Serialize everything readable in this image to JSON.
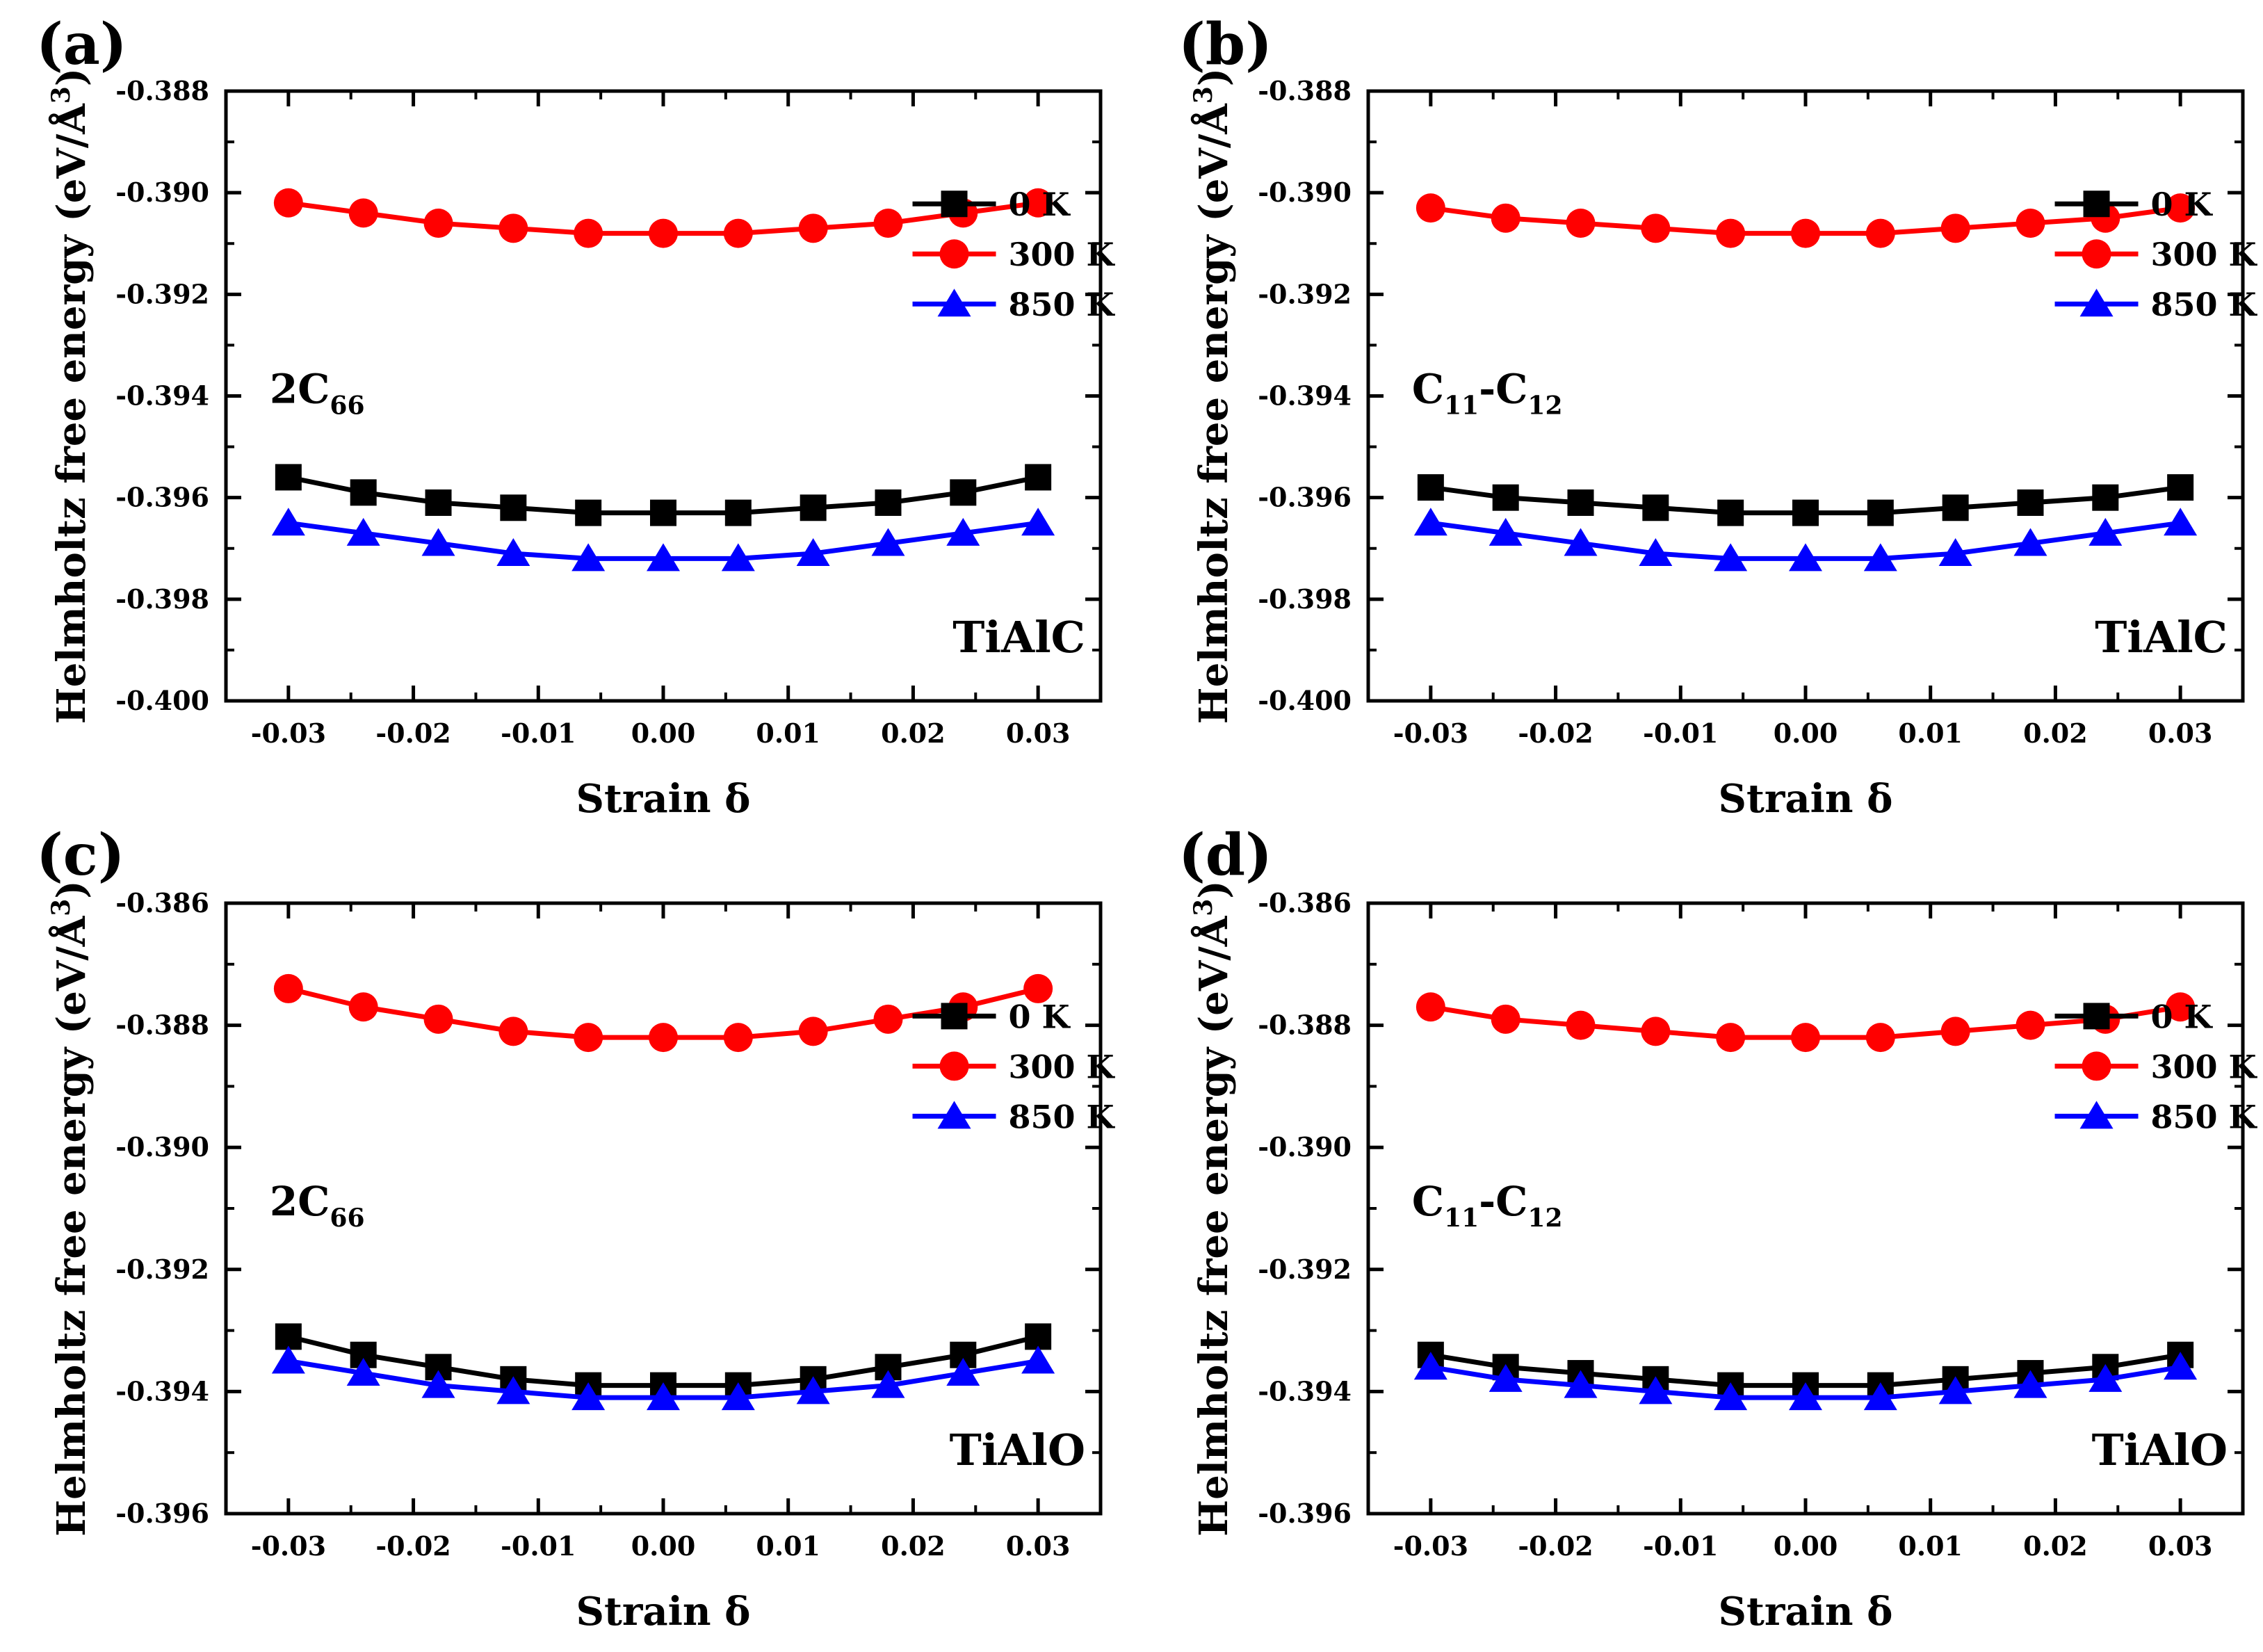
{
  "figure": {
    "axis_x_label": "Strain δ",
    "axis_y_label": "Helmholtz free energy (eV/Å³)",
    "axis_y_label_main": "Helmholtz free energy (eV/Å",
    "axis_y_label_sup": "3",
    "axis_y_label_end": ")"
  },
  "colors": {
    "0K": "#000000",
    "300K": "#ff0000",
    "850K": "#0000ff"
  },
  "chart_data": [
    {
      "panel": "(a)",
      "type": "line",
      "elastic_constant": "2C66",
      "elastic_constant_label": {
        "base": "2C",
        "sub": "66"
      },
      "material": "TiAlC",
      "xlabel": "Strain δ",
      "ylabel": "Helmholtz free energy (eV/Å³)",
      "xlim": [
        -0.035,
        0.035
      ],
      "ylim": [
        -0.4,
        -0.388
      ],
      "xticks": [
        -0.03,
        -0.02,
        -0.01,
        0.0,
        0.01,
        0.02,
        0.03
      ],
      "xtick_labels": [
        "-0.03",
        "-0.02",
        "-0.01",
        "0.00",
        "0.01",
        "0.02",
        "0.03"
      ],
      "yticks": [
        -0.4,
        -0.398,
        -0.396,
        -0.394,
        -0.392,
        -0.39,
        -0.388
      ],
      "ytick_labels": [
        "-0.400",
        "-0.398",
        "-0.396",
        "-0.394",
        "-0.392",
        "-0.390",
        "-0.388"
      ],
      "legend_position": "right",
      "x": [
        -0.03,
        -0.024,
        -0.018,
        -0.012,
        -0.006,
        0.0,
        0.006,
        0.012,
        0.018,
        0.024,
        0.03
      ],
      "series": [
        {
          "name": "0 K",
          "key": "0K",
          "marker": "square",
          "values": [
            -0.3956,
            -0.3959,
            -0.3961,
            -0.3962,
            -0.3963,
            -0.3963,
            -0.3963,
            -0.3962,
            -0.3961,
            -0.3959,
            -0.3956
          ]
        },
        {
          "name": "300 K",
          "key": "300K",
          "marker": "circle",
          "values": [
            -0.3902,
            -0.3904,
            -0.3906,
            -0.3907,
            -0.3908,
            -0.3908,
            -0.3908,
            -0.3907,
            -0.3906,
            -0.3904,
            -0.3902
          ]
        },
        {
          "name": "850 K",
          "key": "850K",
          "marker": "triangle",
          "values": [
            -0.3965,
            -0.3967,
            -0.3969,
            -0.3971,
            -0.3972,
            -0.3972,
            -0.3972,
            -0.3971,
            -0.3969,
            -0.3967,
            -0.3965
          ]
        }
      ]
    },
    {
      "panel": "(b)",
      "type": "line",
      "elastic_constant": "C11-C12",
      "elastic_constant_label": {
        "a": "C",
        "a_sub": "11",
        "dash": "-",
        "b": "C",
        "b_sub": "12"
      },
      "material": "TiAlC",
      "xlabel": "Strain δ",
      "ylabel": "Helmholtz free energy (eV/Å³)",
      "xlim": [
        -0.035,
        0.035
      ],
      "ylim": [
        -0.4,
        -0.388
      ],
      "xticks": [
        -0.03,
        -0.02,
        -0.01,
        0.0,
        0.01,
        0.02,
        0.03
      ],
      "xtick_labels": [
        "-0.03",
        "-0.02",
        "-0.01",
        "0.00",
        "0.01",
        "0.02",
        "0.03"
      ],
      "yticks": [
        -0.4,
        -0.398,
        -0.396,
        -0.394,
        -0.392,
        -0.39,
        -0.388
      ],
      "ytick_labels": [
        "-0.400",
        "-0.398",
        "-0.396",
        "-0.394",
        "-0.392",
        "-0.390",
        "-0.388"
      ],
      "legend_position": "right",
      "x": [
        -0.03,
        -0.024,
        -0.018,
        -0.012,
        -0.006,
        0.0,
        0.006,
        0.012,
        0.018,
        0.024,
        0.03
      ],
      "series": [
        {
          "name": "0 K",
          "key": "0K",
          "marker": "square",
          "values": [
            -0.3958,
            -0.396,
            -0.3961,
            -0.3962,
            -0.3963,
            -0.3963,
            -0.3963,
            -0.3962,
            -0.3961,
            -0.396,
            -0.3958
          ]
        },
        {
          "name": "300 K",
          "key": "300K",
          "marker": "circle",
          "values": [
            -0.3903,
            -0.3905,
            -0.3906,
            -0.3907,
            -0.3908,
            -0.3908,
            -0.3908,
            -0.3907,
            -0.3906,
            -0.3905,
            -0.3903
          ]
        },
        {
          "name": "850 K",
          "key": "850K",
          "marker": "triangle",
          "values": [
            -0.3965,
            -0.3967,
            -0.3969,
            -0.3971,
            -0.3972,
            -0.3972,
            -0.3972,
            -0.3971,
            -0.3969,
            -0.3967,
            -0.3965
          ]
        }
      ]
    },
    {
      "panel": "(c)",
      "type": "line",
      "elastic_constant": "2C66",
      "elastic_constant_label": {
        "base": "2C",
        "sub": "66"
      },
      "material": "TiAlO",
      "xlabel": "Strain δ",
      "ylabel": "Helmholtz free energy (eV/Å³)",
      "xlim": [
        -0.035,
        0.035
      ],
      "ylim": [
        -0.396,
        -0.386
      ],
      "xticks": [
        -0.03,
        -0.02,
        -0.01,
        0.0,
        0.01,
        0.02,
        0.03
      ],
      "xtick_labels": [
        "-0.03",
        "-0.02",
        "-0.01",
        "0.00",
        "0.01",
        "0.02",
        "0.03"
      ],
      "yticks": [
        -0.396,
        -0.394,
        -0.392,
        -0.39,
        -0.388,
        -0.386
      ],
      "ytick_labels": [
        "-0.396",
        "-0.394",
        "-0.392",
        "-0.390",
        "-0.388",
        "-0.386"
      ],
      "legend_position": "right",
      "x": [
        -0.03,
        -0.024,
        -0.018,
        -0.012,
        -0.006,
        0.0,
        0.006,
        0.012,
        0.018,
        0.024,
        0.03
      ],
      "series": [
        {
          "name": "0 K",
          "key": "0K",
          "marker": "square",
          "values": [
            -0.3931,
            -0.3934,
            -0.3936,
            -0.3938,
            -0.3939,
            -0.3939,
            -0.3939,
            -0.3938,
            -0.3936,
            -0.3934,
            -0.3931
          ]
        },
        {
          "name": "300 K",
          "key": "300K",
          "marker": "circle",
          "values": [
            -0.3874,
            -0.3877,
            -0.3879,
            -0.3881,
            -0.3882,
            -0.3882,
            -0.3882,
            -0.3881,
            -0.3879,
            -0.3877,
            -0.3874
          ]
        },
        {
          "name": "850 K",
          "key": "850K",
          "marker": "triangle",
          "values": [
            -0.3935,
            -0.3937,
            -0.3939,
            -0.394,
            -0.3941,
            -0.3941,
            -0.3941,
            -0.394,
            -0.3939,
            -0.3937,
            -0.3935
          ]
        }
      ]
    },
    {
      "panel": "(d)",
      "type": "line",
      "elastic_constant": "C11-C12",
      "elastic_constant_label": {
        "a": "C",
        "a_sub": "11",
        "dash": "-",
        "b": "C",
        "b_sub": "12"
      },
      "material": "TiAlO",
      "xlabel": "Strain δ",
      "ylabel": "Helmholtz free energy (eV/Å³)",
      "xlim": [
        -0.035,
        0.035
      ],
      "ylim": [
        -0.396,
        -0.386
      ],
      "xticks": [
        -0.03,
        -0.02,
        -0.01,
        0.0,
        0.01,
        0.02,
        0.03
      ],
      "xtick_labels": [
        "-0.03",
        "-0.02",
        "-0.01",
        "0.00",
        "0.01",
        "0.02",
        "0.03"
      ],
      "yticks": [
        -0.396,
        -0.394,
        -0.392,
        -0.39,
        -0.388,
        -0.386
      ],
      "ytick_labels": [
        "-0.396",
        "-0.394",
        "-0.392",
        "-0.390",
        "-0.388",
        "-0.386"
      ],
      "legend_position": "right",
      "x": [
        -0.03,
        -0.024,
        -0.018,
        -0.012,
        -0.006,
        0.0,
        0.006,
        0.012,
        0.018,
        0.024,
        0.03
      ],
      "series": [
        {
          "name": "0 K",
          "key": "0K",
          "marker": "square",
          "values": [
            -0.3934,
            -0.3936,
            -0.3937,
            -0.3938,
            -0.3939,
            -0.3939,
            -0.3939,
            -0.3938,
            -0.3937,
            -0.3936,
            -0.3934
          ]
        },
        {
          "name": "300 K",
          "key": "300K",
          "marker": "circle",
          "values": [
            -0.3877,
            -0.3879,
            -0.388,
            -0.3881,
            -0.3882,
            -0.3882,
            -0.3882,
            -0.3881,
            -0.388,
            -0.3879,
            -0.3877
          ]
        },
        {
          "name": "850 K",
          "key": "850K",
          "marker": "triangle",
          "values": [
            -0.3936,
            -0.3938,
            -0.3939,
            -0.394,
            -0.3941,
            -0.3941,
            -0.3941,
            -0.394,
            -0.3939,
            -0.3938,
            -0.3936
          ]
        }
      ]
    }
  ]
}
